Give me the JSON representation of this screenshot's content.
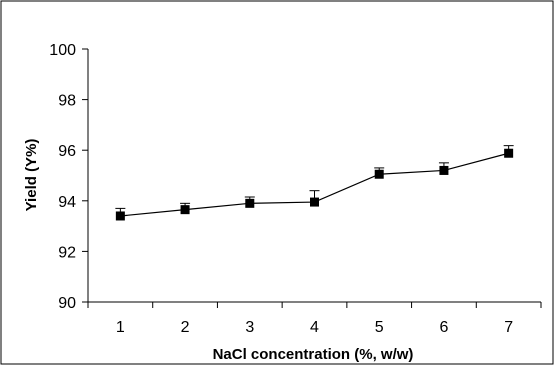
{
  "chart_data": {
    "type": "line",
    "title": "",
    "xlabel": "NaCl concentration (%, w/w)",
    "ylabel": "Yield (Y%)",
    "x": [
      1,
      2,
      3,
      4,
      5,
      6,
      7
    ],
    "values": [
      93.4,
      93.65,
      93.9,
      93.95,
      95.05,
      95.2,
      95.88
    ],
    "error": [
      0.3,
      0.25,
      0.25,
      0.45,
      0.25,
      0.3,
      0.3
    ],
    "ylim": [
      90,
      100
    ],
    "yticks": [
      90,
      92,
      94,
      96,
      98,
      100
    ],
    "xticks": [
      1,
      2,
      3,
      4,
      5,
      6,
      7
    ],
    "xtick_labels": [
      "1",
      "2",
      "3",
      "4",
      "5",
      "6",
      "7"
    ],
    "ytick_labels": [
      "90",
      "92",
      "94",
      "96",
      "98",
      "100"
    ],
    "grid": false,
    "marker": "square",
    "line_color": "#000000"
  }
}
